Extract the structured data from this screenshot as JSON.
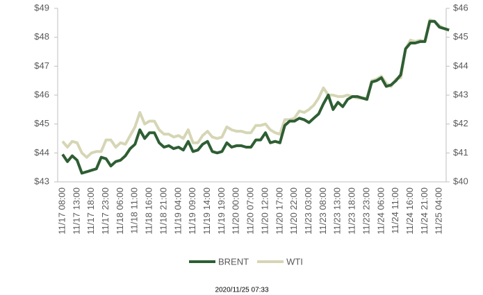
{
  "chart_data": {
    "type": "line",
    "categories": [
      "11/17 08:00",
      null,
      null,
      "11/17 13:00",
      null,
      null,
      "11/17 18:00",
      null,
      null,
      "11/17 23:00",
      null,
      null,
      "11/18 06:00",
      null,
      null,
      "11/18 11:00",
      null,
      null,
      "11/18 16:00",
      null,
      null,
      "11/18 21:00",
      null,
      null,
      "11/19 04:00",
      null,
      null,
      "11/19 09:00",
      null,
      null,
      "11/19 14:00",
      null,
      null,
      "11/19 19:00",
      null,
      null,
      "11/20 00:00",
      null,
      null,
      "11/20 07:00",
      null,
      null,
      "11/20 12:00",
      null,
      null,
      "11/20 17:00",
      null,
      null,
      "11/20 22:00",
      null,
      null,
      "11/23 03:00",
      null,
      null,
      "11/23 08:00",
      null,
      null,
      "11/23 13:00",
      null,
      null,
      "11/23 18:00",
      null,
      null,
      "11/23 23:00",
      null,
      null,
      "11/24 06:00",
      null,
      null,
      "11/24 11:00",
      null,
      null,
      "11/24 16:00",
      null,
      null,
      "11/24 21:00",
      null,
      null,
      "11/25 04:00",
      null,
      null
    ],
    "series": [
      {
        "name": "BRENT",
        "color": "#2e5e33",
        "axis": "y",
        "values": [
          43.95,
          43.7,
          43.9,
          43.75,
          43.3,
          43.35,
          43.4,
          43.45,
          43.85,
          43.8,
          43.55,
          43.7,
          43.75,
          43.9,
          44.15,
          44.3,
          44.8,
          44.5,
          44.7,
          44.7,
          44.35,
          44.2,
          44.25,
          44.15,
          44.2,
          44.1,
          44.4,
          44.05,
          44.1,
          44.3,
          44.4,
          44.05,
          44.0,
          44.05,
          44.35,
          44.2,
          44.25,
          44.25,
          44.2,
          44.2,
          44.45,
          44.45,
          44.7,
          44.35,
          44.4,
          44.35,
          44.95,
          45.1,
          45.1,
          45.2,
          45.15,
          45.05,
          45.2,
          45.35,
          45.7,
          46.0,
          45.5,
          45.75,
          45.6,
          45.85,
          45.95,
          45.95,
          45.9,
          45.85,
          46.45,
          46.5,
          46.6,
          46.3,
          46.35,
          46.5,
          46.7,
          47.6,
          47.8,
          47.8,
          47.85,
          47.85,
          48.55,
          48.55,
          48.35,
          48.3,
          48.25
        ]
      },
      {
        "name": "WTI",
        "color": "#d6d6b6",
        "axis": "y2",
        "values": [
          41.4,
          41.2,
          41.4,
          41.35,
          41.0,
          40.85,
          41.0,
          41.05,
          41.05,
          41.45,
          41.45,
          41.2,
          41.35,
          41.3,
          41.6,
          41.9,
          42.4,
          42.0,
          42.1,
          42.1,
          41.8,
          41.65,
          41.65,
          41.55,
          41.6,
          41.5,
          41.8,
          41.35,
          41.35,
          41.6,
          41.75,
          41.55,
          41.5,
          41.55,
          41.9,
          41.8,
          41.75,
          41.75,
          41.7,
          41.7,
          41.95,
          41.95,
          42.0,
          41.8,
          41.7,
          41.65,
          42.15,
          42.15,
          42.2,
          42.45,
          42.4,
          42.5,
          42.65,
          42.9,
          43.25,
          43.0,
          43.0,
          42.95,
          42.95,
          43.0,
          42.95,
          42.9,
          42.9,
          42.9,
          43.5,
          43.55,
          43.65,
          43.4,
          43.3,
          43.55,
          43.6,
          44.6,
          44.9,
          44.85,
          44.9,
          44.85,
          45.6,
          45.55,
          45.4,
          45.3,
          45.25
        ]
      }
    ],
    "ylim": [
      43,
      49
    ],
    "yticks": [
      {
        "value": 43,
        "label": "$43"
      },
      {
        "value": 44,
        "label": "$44"
      },
      {
        "value": 45,
        "label": "$45"
      },
      {
        "value": 46,
        "label": "$46"
      },
      {
        "value": 47,
        "label": "$47"
      },
      {
        "value": 48,
        "label": "$48"
      },
      {
        "value": 49,
        "label": "$49"
      }
    ],
    "y2lim": [
      40,
      46
    ],
    "y2ticks": [
      {
        "value": 40,
        "label": "$40"
      },
      {
        "value": 41,
        "label": "$41"
      },
      {
        "value": 42,
        "label": "$42"
      },
      {
        "value": 43,
        "label": "$43"
      },
      {
        "value": 44,
        "label": "$44"
      },
      {
        "value": 45,
        "label": "$45"
      },
      {
        "value": 46,
        "label": "$46"
      }
    ],
    "legend": "bottom",
    "footnote": "2020/11/25 07:33"
  }
}
